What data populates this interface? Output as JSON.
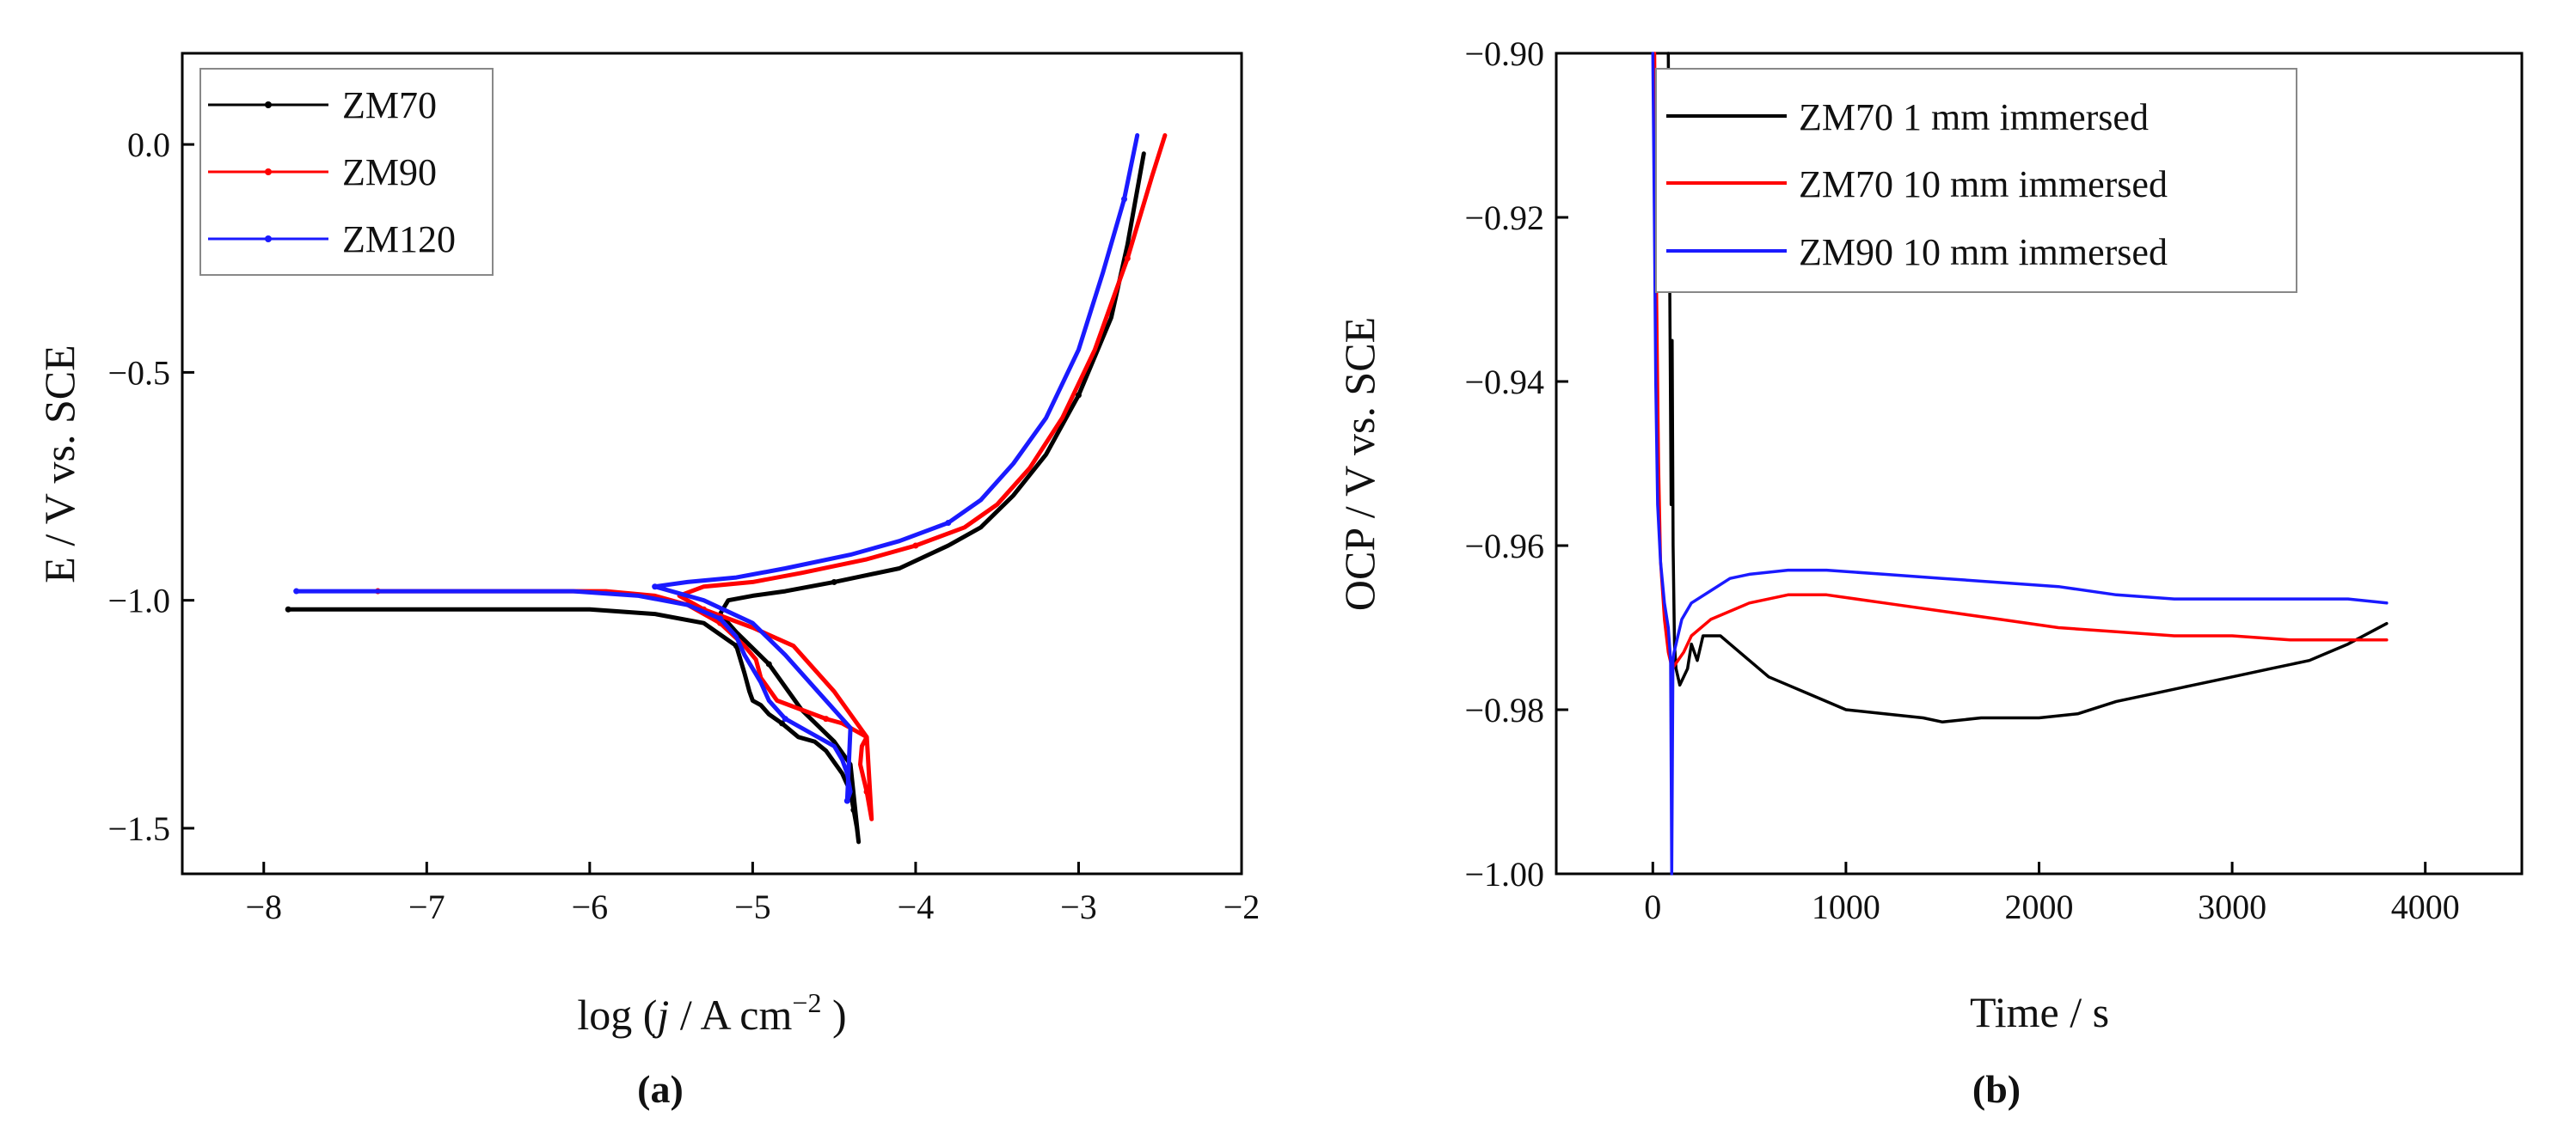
{
  "chart_data": [
    {
      "panel_label": "(a)",
      "type": "line",
      "xlabel_prefix": "log (",
      "xlabel_italic": "j",
      "xlabel_unit": " / A cm",
      "xlabel_exp": "−2",
      "xlabel_suffix": " )",
      "ylabel": "E / V vs. SCE",
      "xlim": [
        -8.5,
        -2
      ],
      "ylim": [
        -1.6,
        0.2
      ],
      "xticks": [
        -8,
        -7,
        -6,
        -5,
        -4,
        -3,
        -2
      ],
      "xtick_labels": [
        "−8",
        "−7",
        "−6",
        "−5",
        "−4",
        "−3",
        "−2"
      ],
      "yticks": [
        0.0,
        -0.5,
        -1.0,
        -1.5
      ],
      "ytick_labels": [
        "0.0",
        "−0.5",
        "−1.0",
        "−1.5"
      ],
      "legend": {
        "position": "top-left"
      },
      "series": [
        {
          "name": "ZM70",
          "color": "#000000",
          "x": [
            -7.85,
            -7.0,
            -6.5,
            -6.0,
            -5.6,
            -5.3,
            -5.1,
            -5.05,
            -5.02,
            -5.0,
            -4.95,
            -4.9,
            -4.82,
            -4.72,
            -4.62,
            -4.55,
            -4.45,
            -4.4,
            -4.38,
            -4.36,
            -4.35,
            -4.4,
            -4.5,
            -4.7,
            -4.9,
            -5.1,
            -5.2,
            -5.15,
            -5.0,
            -4.8,
            -4.5,
            -4.1,
            -3.8,
            -3.6,
            -3.4,
            -3.2,
            -3.0,
            -2.8,
            -2.7,
            -2.6
          ],
          "y": [
            -1.02,
            -1.02,
            -1.02,
            -1.02,
            -1.03,
            -1.05,
            -1.1,
            -1.16,
            -1.2,
            -1.22,
            -1.23,
            -1.25,
            -1.27,
            -1.3,
            -1.31,
            -1.33,
            -1.38,
            -1.42,
            -1.46,
            -1.5,
            -1.53,
            -1.36,
            -1.31,
            -1.24,
            -1.14,
            -1.07,
            -1.03,
            -1.0,
            -0.99,
            -0.98,
            -0.96,
            -0.93,
            -0.88,
            -0.84,
            -0.77,
            -0.68,
            -0.55,
            -0.38,
            -0.22,
            -0.02
          ]
        },
        {
          "name": "ZM90",
          "color": "#ff0000",
          "x": [
            -7.3,
            -6.8,
            -6.3,
            -5.9,
            -5.6,
            -5.4,
            -5.2,
            -5.05,
            -4.98,
            -4.95,
            -4.85,
            -4.7,
            -4.55,
            -4.45,
            -4.35,
            -4.3,
            -4.33,
            -4.34,
            -4.3,
            -4.27,
            -4.3,
            -4.5,
            -4.75,
            -5.0,
            -5.3,
            -5.45,
            -5.3,
            -5.0,
            -4.7,
            -4.3,
            -4.0,
            -3.7,
            -3.5,
            -3.3,
            -3.1,
            -2.9,
            -2.7,
            -2.55,
            -2.47
          ],
          "y": [
            -0.98,
            -0.98,
            -0.98,
            -0.98,
            -0.99,
            -1.01,
            -1.05,
            -1.1,
            -1.13,
            -1.17,
            -1.22,
            -1.24,
            -1.26,
            -1.27,
            -1.29,
            -1.3,
            -1.32,
            -1.36,
            -1.42,
            -1.48,
            -1.3,
            -1.2,
            -1.1,
            -1.06,
            -1.02,
            -0.99,
            -0.97,
            -0.96,
            -0.94,
            -0.91,
            -0.88,
            -0.84,
            -0.79,
            -0.71,
            -0.6,
            -0.45,
            -0.25,
            -0.07,
            0.02
          ]
        },
        {
          "name": "ZM120",
          "color": "#1a1aff",
          "x": [
            -7.8,
            -7.2,
            -6.6,
            -6.1,
            -5.7,
            -5.4,
            -5.2,
            -5.1,
            -5.05,
            -5.0,
            -4.95,
            -4.9,
            -4.8,
            -4.65,
            -4.5,
            -4.45,
            -4.42,
            -4.4,
            -4.42,
            -4.4,
            -4.6,
            -4.8,
            -5.0,
            -5.3,
            -5.6,
            -5.4,
            -5.1,
            -4.8,
            -4.4,
            -4.1,
            -3.8,
            -3.6,
            -3.4,
            -3.2,
            -3.0,
            -2.85,
            -2.72,
            -2.64
          ],
          "y": [
            -0.98,
            -0.98,
            -0.98,
            -0.98,
            -0.99,
            -1.01,
            -1.04,
            -1.08,
            -1.12,
            -1.15,
            -1.18,
            -1.22,
            -1.26,
            -1.29,
            -1.32,
            -1.35,
            -1.38,
            -1.42,
            -1.44,
            -1.28,
            -1.2,
            -1.12,
            -1.05,
            -1.0,
            -0.97,
            -0.96,
            -0.95,
            -0.93,
            -0.9,
            -0.87,
            -0.83,
            -0.78,
            -0.7,
            -0.6,
            -0.45,
            -0.28,
            -0.12,
            0.02
          ]
        }
      ]
    },
    {
      "panel_label": "(b)",
      "type": "line",
      "xlabel": "Time / s",
      "ylabel": "OCP / V vs. SCE",
      "xlim": [
        -500,
        4500
      ],
      "ylim": [
        -1.0,
        -0.9
      ],
      "xticks": [
        0,
        1000,
        2000,
        3000,
        4000
      ],
      "xtick_labels": [
        "0",
        "1000",
        "2000",
        "3000",
        "4000"
      ],
      "yticks": [
        -0.9,
        -0.92,
        -0.94,
        -0.96,
        -0.98,
        -1.0
      ],
      "ytick_labels": [
        "−0.90",
        "−0.92",
        "−0.94",
        "−0.96",
        "−0.98",
        "−1.00"
      ],
      "legend": {
        "position": "top-right"
      },
      "series": [
        {
          "name": "ZM70 1 mm immersed",
          "color": "#000000",
          "x": [
            80,
            88,
            95,
            100,
            105,
            112,
            120,
            140,
            160,
            180,
            200,
            230,
            260,
            300,
            350,
            400,
            500,
            600,
            700,
            800,
            1000,
            1200,
            1400,
            1500,
            1700,
            2000,
            2200,
            2400,
            2600,
            2800,
            3000,
            3200,
            3400,
            3600,
            3800
          ],
          "y": [
            -0.9,
            -0.93,
            -0.955,
            -0.935,
            -0.96,
            -0.972,
            -0.975,
            -0.977,
            -0.976,
            -0.975,
            -0.972,
            -0.974,
            -0.971,
            -0.971,
            -0.971,
            -0.972,
            -0.974,
            -0.976,
            -0.977,
            -0.978,
            -0.98,
            -0.9805,
            -0.981,
            -0.9815,
            -0.981,
            -0.981,
            -0.9805,
            -0.979,
            -0.978,
            -0.977,
            -0.976,
            -0.975,
            -0.974,
            -0.972,
            -0.9695
          ]
        },
        {
          "name": "ZM70 10 mm immersed",
          "color": "#ff0000",
          "x": [
            10,
            20,
            30,
            40,
            60,
            80,
            100,
            130,
            160,
            200,
            300,
            400,
            500,
            700,
            900,
            1200,
            1500,
            1800,
            2100,
            2400,
            2700,
            3000,
            3300,
            3600,
            3800
          ],
          "y": [
            -0.9,
            -0.93,
            -0.95,
            -0.962,
            -0.969,
            -0.973,
            -0.975,
            -0.974,
            -0.973,
            -0.971,
            -0.969,
            -0.968,
            -0.967,
            -0.966,
            -0.966,
            -0.967,
            -0.968,
            -0.969,
            -0.97,
            -0.9705,
            -0.971,
            -0.971,
            -0.9715,
            -0.9715,
            -0.9715
          ]
        },
        {
          "name": "ZM90 10 mm immersed",
          "color": "#1a1aff",
          "x": [
            0,
            8,
            15,
            25,
            40,
            60,
            80,
            92,
            98,
            104,
            110,
            120,
            130,
            150,
            200,
            300,
            400,
            500,
            700,
            900,
            1200,
            1500,
            1800,
            2100,
            2400,
            2700,
            3000,
            3300,
            3600,
            3800
          ],
          "y": [
            -0.9,
            -0.92,
            -0.94,
            -0.955,
            -0.962,
            -0.967,
            -0.97,
            -0.974,
            -1.0,
            -0.974,
            -0.973,
            -0.972,
            -0.971,
            -0.969,
            -0.967,
            -0.9655,
            -0.964,
            -0.9635,
            -0.963,
            -0.963,
            -0.9635,
            -0.964,
            -0.9645,
            -0.965,
            -0.966,
            -0.9665,
            -0.9665,
            -0.9665,
            -0.9665,
            -0.967
          ]
        }
      ]
    }
  ]
}
